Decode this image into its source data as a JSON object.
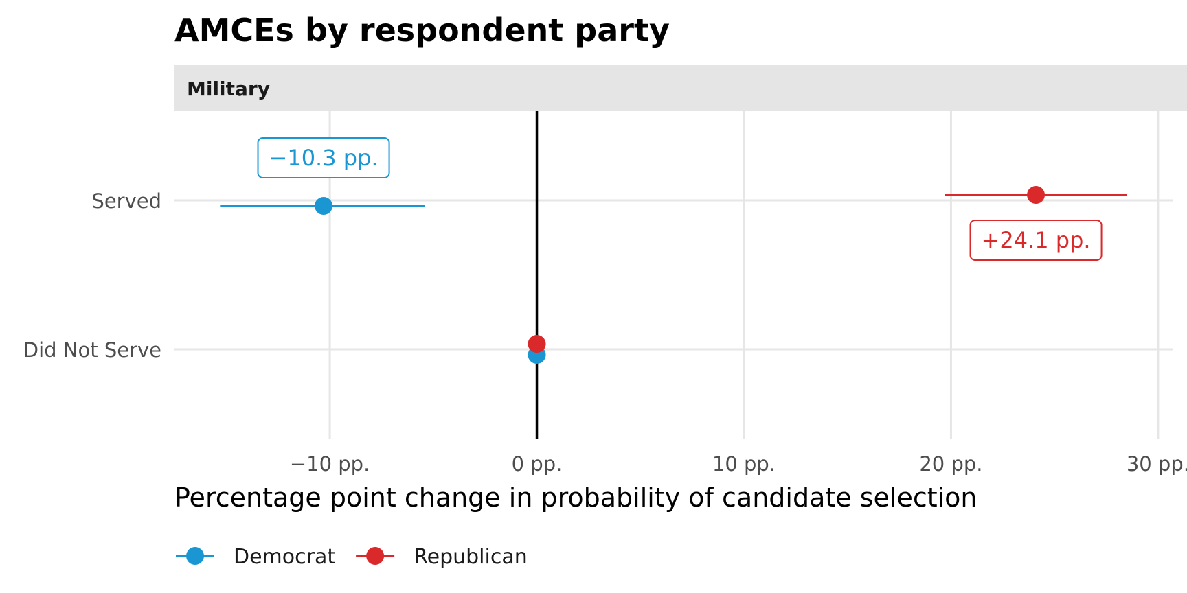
{
  "chart_data": {
    "type": "scatter",
    "title": "AMCEs by respondent party",
    "facet": "Military",
    "xlabel": "Percentage point change in probability of candidate selection",
    "ylabel": "",
    "categories": [
      "Served",
      "Did Not Serve"
    ],
    "x_ticks": [
      -10,
      0,
      10,
      20,
      30
    ],
    "x_tick_labels": [
      "−10 pp.",
      "0 pp.",
      "10 pp.",
      "20 pp.",
      "30 pp."
    ],
    "xlim": [
      -17.5,
      30.7
    ],
    "reference_line": 0,
    "grid": true,
    "legend_position": "bottom-left",
    "series": [
      {
        "name": "Democrat",
        "color": "#1a96d2",
        "points": [
          {
            "category": "Served",
            "estimate": -10.3,
            "ci_low": -15.3,
            "ci_high": -5.4,
            "label": "−10.3 pp."
          },
          {
            "category": "Did Not Serve",
            "estimate": 0,
            "ci_low": null,
            "ci_high": null,
            "label": ""
          }
        ]
      },
      {
        "name": "Republican",
        "color": "#d9292b",
        "points": [
          {
            "category": "Served",
            "estimate": 24.1,
            "ci_low": 19.7,
            "ci_high": 28.5,
            "label": "+24.1 pp."
          },
          {
            "category": "Did Not Serve",
            "estimate": 0,
            "ci_low": null,
            "ci_high": null,
            "label": ""
          }
        ]
      }
    ]
  },
  "legend": {
    "items": [
      {
        "name": "Democrat",
        "color": "#1a96d2"
      },
      {
        "name": "Republican",
        "color": "#d9292b"
      }
    ]
  }
}
